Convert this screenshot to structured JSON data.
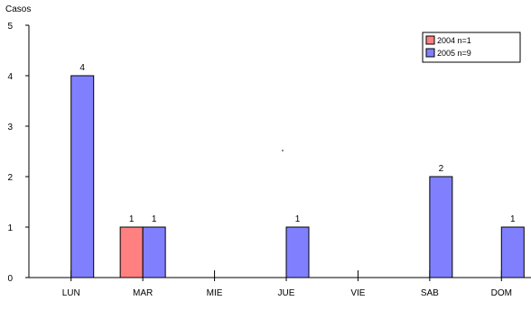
{
  "chart_data": {
    "type": "bar",
    "title": "",
    "xlabel": "",
    "ylabel": "Casos",
    "ylim": [
      0,
      5
    ],
    "yticks": [
      0,
      1,
      2,
      3,
      4,
      5
    ],
    "categories": [
      "LUN",
      "MAR",
      "MIE",
      "JUE",
      "VIE",
      "SAB",
      "DOM"
    ],
    "series": [
      {
        "name": "2004 n=1",
        "color": "#ff8080",
        "values": [
          0,
          1,
          0,
          0,
          0,
          0,
          0
        ]
      },
      {
        "name": "2005 n=9",
        "color": "#8080ff",
        "values": [
          4,
          1,
          0,
          1,
          0,
          2,
          1
        ]
      }
    ],
    "legend_position": "top-right",
    "grid": false
  }
}
